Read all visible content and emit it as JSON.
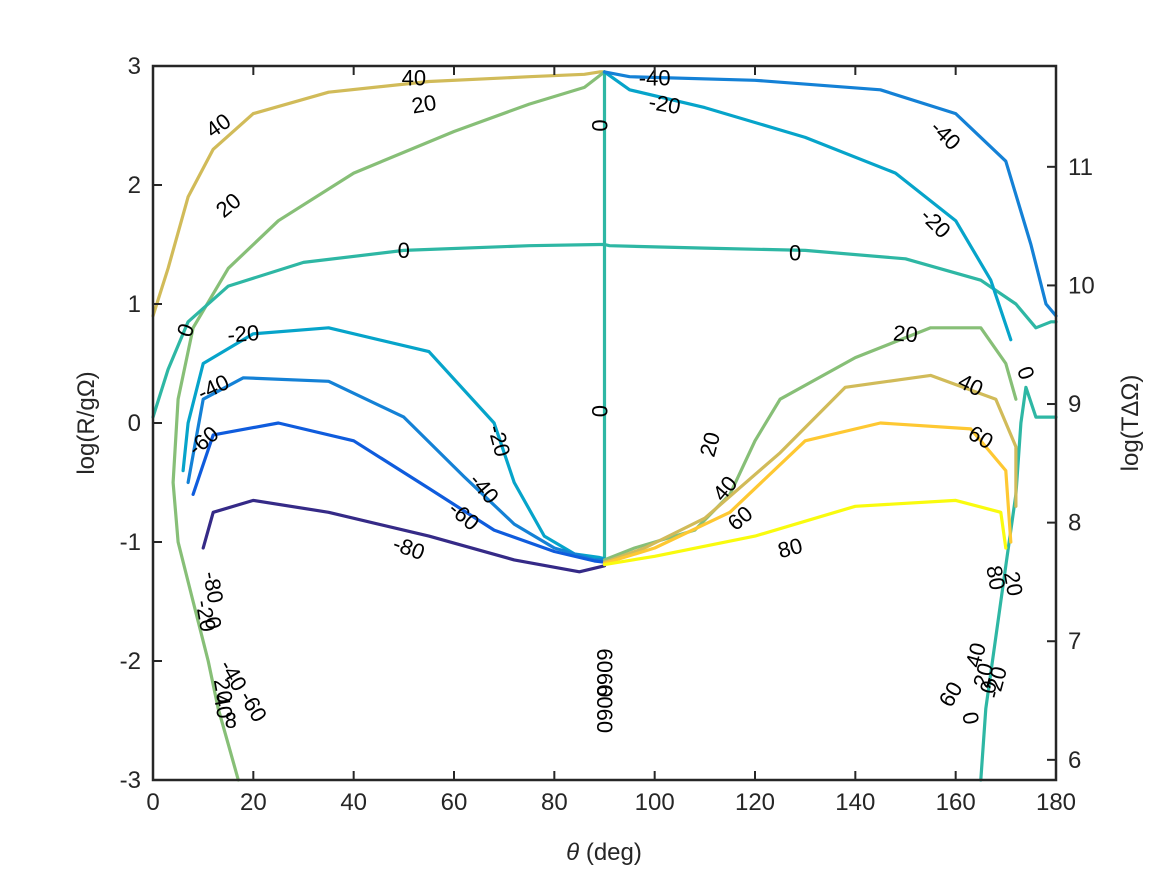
{
  "chart_data": {
    "type": "contour",
    "xlabel_symbol": "θ",
    "xlabel_text": " (deg)",
    "ylabel": "log(R/gΩ)",
    "y2label": "log(TΔΩ)",
    "xlim": [
      0,
      180
    ],
    "ylim": [
      -3,
      3
    ],
    "y2lim": [
      5.83,
      11.85
    ],
    "xticks": [
      0,
      20,
      40,
      60,
      80,
      100,
      120,
      140,
      160,
      180
    ],
    "yticks": [
      -3,
      -2,
      -1,
      0,
      1,
      2,
      3
    ],
    "y2ticks": [
      6,
      7,
      8,
      9,
      10,
      11
    ],
    "xtick_labels": [
      "0",
      "20",
      "40",
      "60",
      "80",
      "100",
      "120",
      "140",
      "160",
      "180"
    ],
    "ytick_labels": [
      "-3",
      "-2",
      "-1",
      "0",
      "1",
      "2",
      "3"
    ],
    "y2tick_labels": [
      "6",
      "7",
      "8",
      "9",
      "10",
      "11"
    ],
    "levels": [
      -80,
      -60,
      -40,
      -20,
      0,
      20,
      40,
      60,
      80
    ],
    "level_colors": {
      "-80": "#352a87",
      "-60": "#0f5cdd",
      "-40": "#1481d6",
      "-20": "#06a4ca",
      "0": "#2eb7a4",
      "20": "#87bf77",
      "40": "#d1bb59",
      "60": "#fec832",
      "80": "#f9fb0e"
    },
    "series": [
      {
        "level": 40,
        "points": [
          [
            0,
            0.9
          ],
          [
            3,
            1.3
          ],
          [
            7,
            1.9
          ],
          [
            12,
            2.3
          ],
          [
            20,
            2.6
          ],
          [
            35,
            2.78
          ],
          [
            55,
            2.87
          ],
          [
            75,
            2.91
          ],
          [
            86,
            2.93
          ],
          [
            89,
            2.95
          ],
          [
            90,
            2.95
          ]
        ]
      },
      {
        "level": 20,
        "points": [
          [
            90,
            2.95
          ],
          [
            86,
            2.82
          ],
          [
            75,
            2.68
          ],
          [
            60,
            2.45
          ],
          [
            40,
            2.1
          ],
          [
            25,
            1.7
          ],
          [
            15,
            1.3
          ],
          [
            8,
            0.8
          ],
          [
            5,
            0.2
          ],
          [
            4,
            -0.5
          ],
          [
            5,
            -1.0
          ],
          [
            8,
            -1.5
          ],
          [
            11,
            -2.0
          ],
          [
            13,
            -2.4
          ],
          [
            15,
            -2.7
          ],
          [
            17,
            -3.0
          ]
        ]
      },
      {
        "level": 0,
        "points": [
          [
            0,
            0.05
          ],
          [
            3,
            0.45
          ],
          [
            7,
            0.85
          ],
          [
            15,
            1.15
          ],
          [
            30,
            1.35
          ],
          [
            50,
            1.45
          ],
          [
            75,
            1.49
          ],
          [
            89,
            1.5
          ],
          [
            90,
            1.5
          ]
        ]
      },
      {
        "level": 0,
        "points": [
          [
            90,
            1.5
          ],
          [
            91,
            1.49
          ],
          [
            110,
            1.47
          ],
          [
            130,
            1.45
          ],
          [
            150,
            1.38
          ],
          [
            165,
            1.2
          ],
          [
            172,
            1.0
          ],
          [
            176,
            0.8
          ],
          [
            179,
            0.85
          ],
          [
            180,
            0.85
          ]
        ]
      },
      {
        "level": 0,
        "points": [
          [
            90,
            2.95
          ],
          [
            90,
            -1.15
          ]
        ]
      },
      {
        "level": 0,
        "points": [
          [
            165,
            -3.0
          ],
          [
            166,
            -2.4
          ],
          [
            168,
            -1.8
          ],
          [
            170,
            -1.2
          ],
          [
            172,
            -0.6
          ],
          [
            173,
            0.0
          ],
          [
            174,
            0.3
          ],
          [
            176,
            0.05
          ],
          [
            180,
            0.05
          ]
        ]
      },
      {
        "level": -20,
        "points": [
          [
            6,
            -0.4
          ],
          [
            7,
            0.0
          ],
          [
            10,
            0.5
          ],
          [
            20,
            0.75
          ],
          [
            35,
            0.8
          ],
          [
            55,
            0.6
          ],
          [
            68,
            0.0
          ],
          [
            72,
            -0.5
          ],
          [
            78,
            -0.95
          ],
          [
            84,
            -1.1
          ],
          [
            89,
            -1.13
          ],
          [
            90,
            -1.14
          ]
        ]
      },
      {
        "level": -40,
        "points": [
          [
            7,
            -0.5
          ],
          [
            10,
            0.2
          ],
          [
            18,
            0.38
          ],
          [
            35,
            0.35
          ],
          [
            50,
            0.05
          ],
          [
            62,
            -0.45
          ],
          [
            72,
            -0.85
          ],
          [
            80,
            -1.05
          ],
          [
            88,
            -1.15
          ],
          [
            90,
            -1.15
          ]
        ]
      },
      {
        "level": -60,
        "points": [
          [
            8,
            -0.6
          ],
          [
            12,
            -0.1
          ],
          [
            25,
            0.0
          ],
          [
            40,
            -0.15
          ],
          [
            55,
            -0.55
          ],
          [
            68,
            -0.9
          ],
          [
            80,
            -1.08
          ],
          [
            88,
            -1.16
          ],
          [
            90,
            -1.17
          ]
        ]
      },
      {
        "level": -80,
        "points": [
          [
            10,
            -1.05
          ],
          [
            12,
            -0.75
          ],
          [
            20,
            -0.65
          ],
          [
            35,
            -0.75
          ],
          [
            55,
            -0.95
          ],
          [
            72,
            -1.15
          ],
          [
            85,
            -1.25
          ],
          [
            90,
            -1.2
          ]
        ]
      },
      {
        "level": 20,
        "points": [
          [
            90,
            -1.15
          ],
          [
            96,
            -1.05
          ],
          [
            108,
            -0.9
          ],
          [
            115,
            -0.6
          ],
          [
            120,
            -0.15
          ],
          [
            125,
            0.2
          ],
          [
            140,
            0.55
          ],
          [
            155,
            0.8
          ],
          [
            165,
            0.8
          ],
          [
            170,
            0.5
          ],
          [
            172,
            0.2
          ]
        ]
      },
      {
        "level": 40,
        "points": [
          [
            90,
            -1.17
          ],
          [
            98,
            -1.05
          ],
          [
            110,
            -0.8
          ],
          [
            125,
            -0.25
          ],
          [
            138,
            0.3
          ],
          [
            155,
            0.4
          ],
          [
            168,
            0.2
          ],
          [
            172,
            -0.2
          ],
          [
            172,
            -0.7
          ]
        ]
      },
      {
        "level": 60,
        "points": [
          [
            90,
            -1.18
          ],
          [
            100,
            -1.05
          ],
          [
            115,
            -0.75
          ],
          [
            130,
            -0.15
          ],
          [
            145,
            0.0
          ],
          [
            163,
            -0.05
          ],
          [
            170,
            -0.4
          ],
          [
            171,
            -1.0
          ]
        ]
      },
      {
        "level": 80,
        "points": [
          [
            90,
            -1.19
          ],
          [
            100,
            -1.12
          ],
          [
            120,
            -0.95
          ],
          [
            140,
            -0.7
          ],
          [
            160,
            -0.65
          ],
          [
            169,
            -0.75
          ],
          [
            170,
            -1.05
          ]
        ]
      },
      {
        "level": -20,
        "points": [
          [
            90,
            2.95
          ],
          [
            95,
            2.8
          ],
          [
            110,
            2.65
          ],
          [
            130,
            2.4
          ],
          [
            148,
            2.1
          ],
          [
            160,
            1.7
          ],
          [
            167,
            1.2
          ],
          [
            171,
            0.7
          ]
        ]
      },
      {
        "level": -40,
        "points": [
          [
            90,
            2.95
          ],
          [
            95,
            2.91
          ],
          [
            120,
            2.88
          ],
          [
            145,
            2.8
          ],
          [
            160,
            2.6
          ],
          [
            170,
            2.2
          ],
          [
            175,
            1.5
          ],
          [
            178,
            1.0
          ],
          [
            180,
            0.9
          ]
        ]
      }
    ],
    "labels": [
      {
        "text": "40",
        "x": 52,
        "y": 2.9,
        "rot": 0
      },
      {
        "text": "40",
        "x": 13,
        "y": 2.5,
        "rot": -35
      },
      {
        "text": "20",
        "x": 54,
        "y": 2.68,
        "rot": -10
      },
      {
        "text": "20",
        "x": 15,
        "y": 1.83,
        "rot": -40
      },
      {
        "text": "0",
        "x": 89,
        "y": 2.5,
        "rot": 90
      },
      {
        "text": "-40",
        "x": 100,
        "y": 2.9,
        "rot": 0
      },
      {
        "text": "-20",
        "x": 102,
        "y": 2.68,
        "rot": 10
      },
      {
        "text": "-40",
        "x": 158,
        "y": 2.42,
        "rot": 45
      },
      {
        "text": "-20",
        "x": 156,
        "y": 1.68,
        "rot": 45
      },
      {
        "text": "0",
        "x": 50,
        "y": 1.45,
        "rot": 0
      },
      {
        "text": "0",
        "x": 128,
        "y": 1.43,
        "rot": 0
      },
      {
        "text": "0",
        "x": 6.5,
        "y": 0.78,
        "rot": -70
      },
      {
        "text": "-20",
        "x": 18,
        "y": 0.75,
        "rot": -5
      },
      {
        "text": "20",
        "x": 150,
        "y": 0.75,
        "rot": 5
      },
      {
        "text": "-40",
        "x": 12,
        "y": 0.3,
        "rot": -25
      },
      {
        "text": "40",
        "x": 163,
        "y": 0.32,
        "rot": 25
      },
      {
        "text": "0",
        "x": 174,
        "y": 0.42,
        "rot": 70
      },
      {
        "text": "-60",
        "x": 10,
        "y": -0.15,
        "rot": -40
      },
      {
        "text": "60",
        "x": 165,
        "y": -0.12,
        "rot": 30
      },
      {
        "text": "0",
        "x": 89,
        "y": 0.1,
        "rot": 90
      },
      {
        "text": "-20",
        "x": 69,
        "y": -0.15,
        "rot": 75
      },
      {
        "text": "20",
        "x": 111,
        "y": -0.18,
        "rot": -75
      },
      {
        "text": "-40",
        "x": 66,
        "y": -0.55,
        "rot": 50
      },
      {
        "text": "40",
        "x": 114,
        "y": -0.55,
        "rot": -50
      },
      {
        "text": "-60",
        "x": 62,
        "y": -0.78,
        "rot": 40
      },
      {
        "text": "60",
        "x": 117,
        "y": -0.8,
        "rot": -40
      },
      {
        "text": "-80",
        "x": 51,
        "y": -1.05,
        "rot": 20
      },
      {
        "text": "80",
        "x": 127,
        "y": -1.05,
        "rot": -15
      },
      {
        "text": "-80",
        "x": 12,
        "y": -1.38,
        "rot": 80
      },
      {
        "text": "-20",
        "x": 10.5,
        "y": -1.62,
        "rot": 80
      },
      {
        "text": "0",
        "x": 12,
        "y": -1.68,
        "rot": 80
      },
      {
        "text": "80",
        "x": 168,
        "y": -1.3,
        "rot": 80
      },
      {
        "text": "20",
        "x": 171.5,
        "y": -1.35,
        "rot": 80
      },
      {
        "text": "-40",
        "x": 16,
        "y": -2.12,
        "rot": 60
      },
      {
        "text": "-60",
        "x": 20,
        "y": -2.38,
        "rot": 60
      },
      {
        "text": "20",
        "x": 14,
        "y": -2.25,
        "rot": 80
      },
      {
        "text": "40",
        "x": 14,
        "y": -2.38,
        "rot": 80
      },
      {
        "text": "8",
        "x": 15.5,
        "y": -2.5,
        "rot": 0
      },
      {
        "text": "40",
        "x": 164,
        "y": -1.95,
        "rot": -75
      },
      {
        "text": "20",
        "x": 165.5,
        "y": -2.12,
        "rot": -75
      },
      {
        "text": "0",
        "x": 166.5,
        "y": -2.22,
        "rot": -75
      },
      {
        "text": "-20",
        "x": 168,
        "y": -2.18,
        "rot": -75
      },
      {
        "text": "60",
        "x": 159,
        "y": -2.28,
        "rot": -60
      },
      {
        "text": "0",
        "x": 163,
        "y": -2.48,
        "rot": 80
      },
      {
        "text": "6060",
        "x": 90,
        "y": -2.1,
        "rot": 90
      },
      {
        "text": "6060",
        "x": 90,
        "y": -2.4,
        "rot": 90
      }
    ]
  }
}
